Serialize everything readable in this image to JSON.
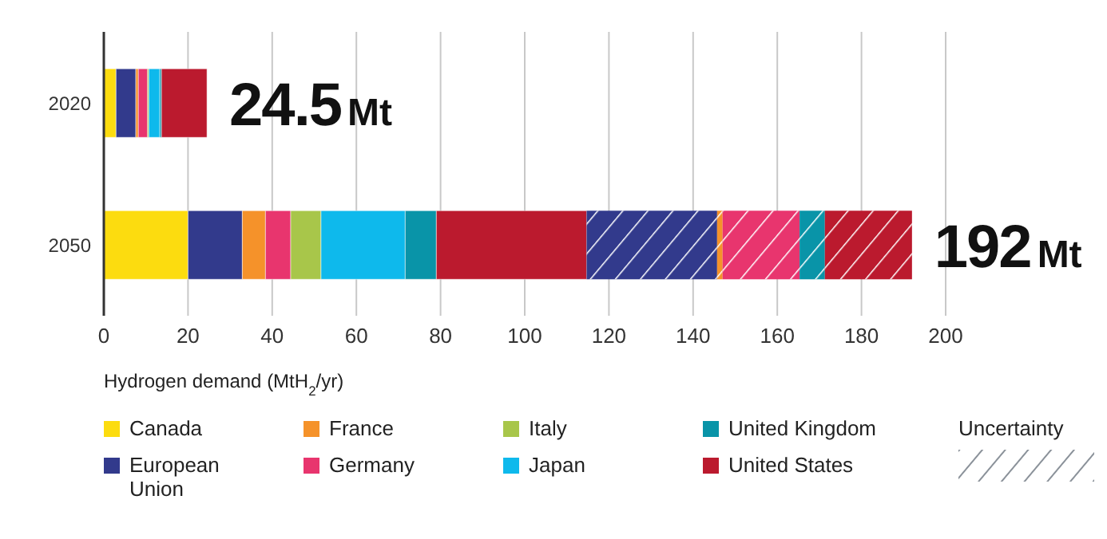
{
  "chart_data": {
    "type": "bar",
    "orientation": "horizontal",
    "stacked": true,
    "categories": [
      "2020",
      "2050"
    ],
    "series": [
      {
        "name": "Canada",
        "color": "#fcdc0f",
        "values": [
          2.9,
          20
        ]
      },
      {
        "name": "European Union",
        "color": "#323a8c",
        "values": [
          4.7,
          12.9
        ]
      },
      {
        "name": "France",
        "color": "#f5922a",
        "values": [
          0.6,
          5.5
        ]
      },
      {
        "name": "Germany",
        "color": "#e8356e",
        "values": [
          2.2,
          6
        ]
      },
      {
        "name": "Italy",
        "color": "#a8c64a",
        "values": [
          0.3,
          7.2
        ]
      },
      {
        "name": "Japan",
        "color": "#0eb9ec",
        "values": [
          2.6,
          20
        ]
      },
      {
        "name": "United Kingdom",
        "color": "#0994a8",
        "values": [
          0.4,
          7.4
        ]
      },
      {
        "name": "United States",
        "color": "#bb1a2e",
        "values": [
          10.8,
          35.7
        ]
      },
      {
        "color": "#323a8c",
        "values": [
          null,
          31
        ]
      },
      {
        "color": "#f5922a",
        "values": [
          null,
          1.3
        ]
      },
      {
        "color": "#e8356e",
        "values": [
          null,
          18.3
        ]
      },
      {
        "color": "#0994a8",
        "values": [
          null,
          6
        ]
      },
      {
        "color": "#bb1a2e",
        "values": [
          null,
          20.7
        ]
      }
    ],
    "xlim": [
      0,
      200
    ],
    "xticks": [
      0,
      20,
      40,
      60,
      80,
      100,
      120,
      140,
      160,
      180,
      200
    ],
    "xlabel": "Hydrogen demand (MtH$_{2}$/yr)",
    "grid": "x",
    "legend": "bottom",
    "annotations": [
      "Uncertainty",
      {
        "text": "24.5Mt",
        "x": 24.5,
        "y": "2020"
      },
      {
        "text": "192Mt",
        "x": 192,
        "y": "2050"
      }
    ]
  }
}
